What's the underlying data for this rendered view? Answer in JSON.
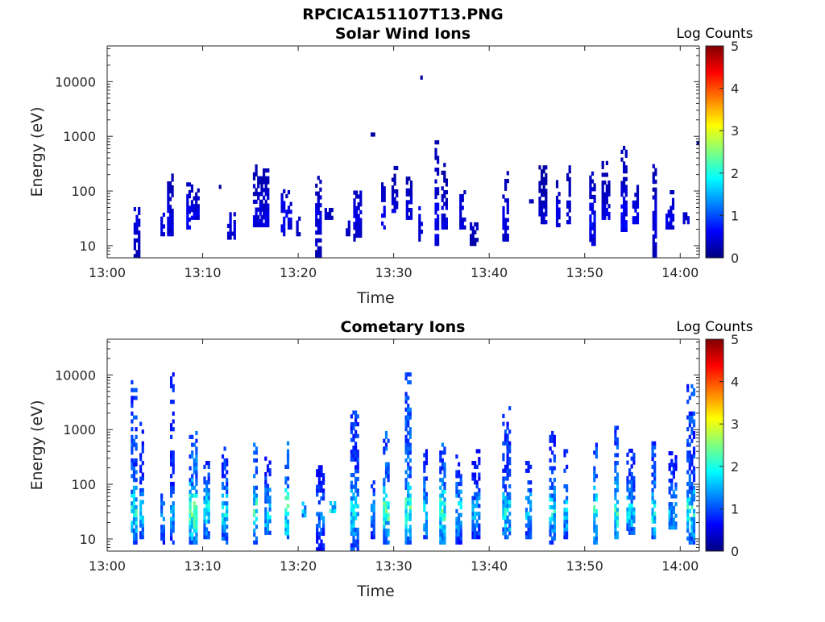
{
  "figure": {
    "title": "RPCICA151107T13.PNG"
  },
  "colormap": {
    "stops": [
      "#00007f",
      "#0000ff",
      "#007fff",
      "#00ffff",
      "#7fff7f",
      "#ffff00",
      "#ff7f00",
      "#ff0000",
      "#7f0000"
    ]
  },
  "chart_data": [
    {
      "type": "heatmap",
      "title": "Solar Wind Ions",
      "xlabel": "Time",
      "ylabel": "Energy (eV)",
      "y_scale": "log",
      "x_ticks": [
        "13:00",
        "13:10",
        "13:20",
        "13:30",
        "13:40",
        "13:50",
        "14:00"
      ],
      "x_tick_minutes": [
        0,
        10,
        20,
        30,
        40,
        50,
        60
      ],
      "xlim_minutes": [
        0,
        62
      ],
      "y_ticks": [
        10,
        100,
        1000,
        10000
      ],
      "y_tick_labels": [
        "10",
        "100",
        "1000",
        "10000"
      ],
      "ylim": [
        6,
        45000
      ],
      "colorbar": {
        "label": "Log Counts",
        "range": [
          0,
          5
        ],
        "ticks": [
          "0",
          "1",
          "2",
          "3",
          "4",
          "5"
        ]
      },
      "bursts": [
        {
          "t": 3.1,
          "lo": 6,
          "hi": 45,
          "v": 0.4
        },
        {
          "t": 5.8,
          "lo": 15,
          "hi": 35,
          "v": 0.4
        },
        {
          "t": 6.6,
          "lo": 15,
          "hi": 280,
          "v": 0.4
        },
        {
          "t": 8.5,
          "lo": 20,
          "hi": 180,
          "v": 0.5
        },
        {
          "t": 9.2,
          "lo": 30,
          "hi": 130,
          "v": 0.4
        },
        {
          "t": 11.8,
          "lo": 110,
          "hi": 120,
          "v": 0.3
        },
        {
          "t": 13.0,
          "lo": 13,
          "hi": 40,
          "v": 0.4
        },
        {
          "t": 15.7,
          "lo": 22,
          "hi": 280,
          "v": 0.4
        },
        {
          "t": 16.5,
          "lo": 22,
          "hi": 250,
          "v": 0.4
        },
        {
          "t": 18.4,
          "lo": 15,
          "hi": 120,
          "v": 0.5
        },
        {
          "t": 19.0,
          "lo": 20,
          "hi": 100,
          "v": 0.4
        },
        {
          "t": 20.0,
          "lo": 15,
          "hi": 30,
          "v": 0.3
        },
        {
          "t": 22.1,
          "lo": 6,
          "hi": 200,
          "v": 0.4
        },
        {
          "t": 23.2,
          "lo": 30,
          "hi": 45,
          "v": 0.3
        },
        {
          "t": 25.2,
          "lo": 15,
          "hi": 25,
          "v": 0.3
        },
        {
          "t": 26.2,
          "lo": 12,
          "hi": 90,
          "v": 0.4
        },
        {
          "t": 27.8,
          "lo": 1000,
          "hi": 1100,
          "v": 0.3
        },
        {
          "t": 28.9,
          "lo": 20,
          "hi": 140,
          "v": 0.4
        },
        {
          "t": 30.1,
          "lo": 40,
          "hi": 280,
          "v": 0.4
        },
        {
          "t": 31.6,
          "lo": 30,
          "hi": 250,
          "v": 0.4
        },
        {
          "t": 32.8,
          "lo": 12,
          "hi": 45,
          "v": 0.4
        },
        {
          "t": 33.0,
          "lo": 11000,
          "hi": 11500,
          "v": 0.3
        },
        {
          "t": 34.5,
          "lo": 10,
          "hi": 1000,
          "v": 0.5
        },
        {
          "t": 35.3,
          "lo": 20,
          "hi": 320,
          "v": 0.4
        },
        {
          "t": 37.2,
          "lo": 20,
          "hi": 90,
          "v": 0.4
        },
        {
          "t": 38.4,
          "lo": 10,
          "hi": 25,
          "v": 0.3
        },
        {
          "t": 41.7,
          "lo": 12,
          "hi": 200,
          "v": 0.4
        },
        {
          "t": 44.4,
          "lo": 60,
          "hi": 70,
          "v": 0.3
        },
        {
          "t": 45.6,
          "lo": 25,
          "hi": 260,
          "v": 0.3
        },
        {
          "t": 47.2,
          "lo": 22,
          "hi": 150,
          "v": 0.4
        },
        {
          "t": 48.3,
          "lo": 25,
          "hi": 300,
          "v": 0.4
        },
        {
          "t": 50.8,
          "lo": 10,
          "hi": 250,
          "v": 0.5
        },
        {
          "t": 52.2,
          "lo": 30,
          "hi": 330,
          "v": 0.4
        },
        {
          "t": 54.1,
          "lo": 18,
          "hi": 650,
          "v": 0.5
        },
        {
          "t": 55.3,
          "lo": 25,
          "hi": 110,
          "v": 0.4
        },
        {
          "t": 57.3,
          "lo": 6,
          "hi": 380,
          "v": 0.4
        },
        {
          "t": 58.9,
          "lo": 20,
          "hi": 100,
          "v": 0.4
        },
        {
          "t": 60.6,
          "lo": 25,
          "hi": 40,
          "v": 0.3
        },
        {
          "t": 61.6,
          "lo": 700,
          "hi": 720,
          "v": 0.3
        }
      ]
    },
    {
      "type": "heatmap",
      "title": "Cometary Ions",
      "xlabel": "Time",
      "ylabel": "Energy (eV)",
      "y_scale": "log",
      "x_ticks": [
        "13:00",
        "13:10",
        "13:20",
        "13:30",
        "13:40",
        "13:50",
        "14:00"
      ],
      "x_tick_minutes": [
        0,
        10,
        20,
        30,
        40,
        50,
        60
      ],
      "xlim_minutes": [
        0,
        62
      ],
      "y_ticks": [
        10,
        100,
        1000,
        10000
      ],
      "y_tick_labels": [
        "10",
        "100",
        "1000",
        "10000"
      ],
      "ylim": [
        6,
        45000
      ],
      "colorbar": {
        "label": "Log Counts",
        "range": [
          0,
          5
        ],
        "ticks": [
          "0",
          "1",
          "2",
          "3",
          "4",
          "5"
        ]
      },
      "bursts": [
        {
          "t": 2.8,
          "lo": 8,
          "hi": 7000,
          "v": 1.5
        },
        {
          "t": 3.6,
          "lo": 10,
          "hi": 1200,
          "v": 1.2
        },
        {
          "t": 5.8,
          "lo": 8,
          "hi": 60,
          "v": 1.0
        },
        {
          "t": 6.8,
          "lo": 8,
          "hi": 9500,
          "v": 1.2
        },
        {
          "t": 9.0,
          "lo": 8,
          "hi": 1000,
          "v": 1.8
        },
        {
          "t": 10.4,
          "lo": 10,
          "hi": 300,
          "v": 1.4
        },
        {
          "t": 12.3,
          "lo": 8,
          "hi": 450,
          "v": 1.4
        },
        {
          "t": 15.5,
          "lo": 8,
          "hi": 600,
          "v": 1.6
        },
        {
          "t": 16.8,
          "lo": 12,
          "hi": 350,
          "v": 1.3
        },
        {
          "t": 18.8,
          "lo": 10,
          "hi": 550,
          "v": 1.7
        },
        {
          "t": 20.6,
          "lo": 25,
          "hi": 45,
          "v": 1.2
        },
        {
          "t": 22.3,
          "lo": 6,
          "hi": 200,
          "v": 1.0
        },
        {
          "t": 23.6,
          "lo": 30,
          "hi": 45,
          "v": 1.4
        },
        {
          "t": 25.9,
          "lo": 6,
          "hi": 2000,
          "v": 1.4
        },
        {
          "t": 27.8,
          "lo": 10,
          "hi": 100,
          "v": 1.0
        },
        {
          "t": 29.2,
          "lo": 8,
          "hi": 800,
          "v": 1.7
        },
        {
          "t": 31.5,
          "lo": 8,
          "hi": 10000,
          "v": 1.7
        },
        {
          "t": 33.3,
          "lo": 10,
          "hi": 500,
          "v": 1.3
        },
        {
          "t": 35.1,
          "lo": 8,
          "hi": 550,
          "v": 1.7
        },
        {
          "t": 36.8,
          "lo": 8,
          "hi": 300,
          "v": 1.3
        },
        {
          "t": 38.6,
          "lo": 10,
          "hi": 400,
          "v": 1.1
        },
        {
          "t": 41.8,
          "lo": 10,
          "hi": 3000,
          "v": 1.4
        },
        {
          "t": 44.1,
          "lo": 10,
          "hi": 250,
          "v": 1.2
        },
        {
          "t": 46.6,
          "lo": 8,
          "hi": 1200,
          "v": 1.4
        },
        {
          "t": 48.0,
          "lo": 10,
          "hi": 450,
          "v": 1.3
        },
        {
          "t": 51.1,
          "lo": 8,
          "hi": 550,
          "v": 1.6
        },
        {
          "t": 53.3,
          "lo": 10,
          "hi": 1000,
          "v": 1.6
        },
        {
          "t": 54.8,
          "lo": 12,
          "hi": 400,
          "v": 1.3
        },
        {
          "t": 57.2,
          "lo": 10,
          "hi": 800,
          "v": 1.5
        },
        {
          "t": 59.2,
          "lo": 15,
          "hi": 400,
          "v": 1.2
        },
        {
          "t": 61.1,
          "lo": 8,
          "hi": 6000,
          "v": 1.5
        }
      ]
    }
  ]
}
